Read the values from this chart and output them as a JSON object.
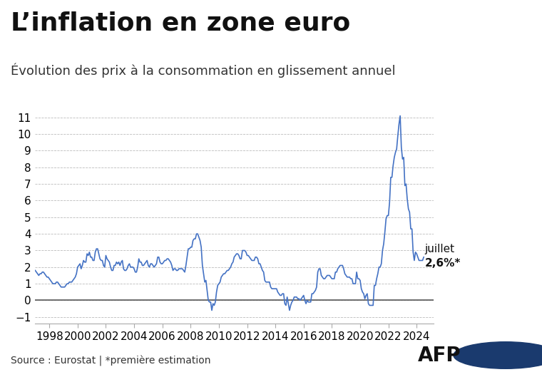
{
  "title": "L’inflation en zone euro",
  "subtitle": "Évolution des prix à la consommation en glissement annuel",
  "source_text": "Source : Eurostat | *première estimation",
  "line_color": "#4472C4",
  "background_color": "#ffffff",
  "ylim": [
    -1.4,
    11.8
  ],
  "yticks": [
    -1,
    0,
    1,
    2,
    3,
    4,
    5,
    6,
    7,
    8,
    9,
    10,
    11
  ],
  "grid_color": "#bbbbbb",
  "zero_line_color": "#555555",
  "title_fontsize": 26,
  "subtitle_fontsize": 13,
  "tick_fontsize": 11,
  "source_fontsize": 10,
  "annotation_fontsize": 11,
  "xlim_left": 1997.0,
  "xlim_right": 2025.2,
  "dates": [
    1997.0,
    1997.083,
    1997.167,
    1997.25,
    1997.333,
    1997.417,
    1997.5,
    1997.583,
    1997.667,
    1997.75,
    1997.833,
    1997.917,
    1998.0,
    1998.083,
    1998.167,
    1998.25,
    1998.333,
    1998.417,
    1998.5,
    1998.583,
    1998.667,
    1998.75,
    1998.833,
    1998.917,
    1999.0,
    1999.083,
    1999.167,
    1999.25,
    1999.333,
    1999.417,
    1999.5,
    1999.583,
    1999.667,
    1999.75,
    1999.833,
    1999.917,
    2000.0,
    2000.083,
    2000.167,
    2000.25,
    2000.333,
    2000.417,
    2000.5,
    2000.583,
    2000.667,
    2000.75,
    2000.833,
    2000.917,
    2001.0,
    2001.083,
    2001.167,
    2001.25,
    2001.333,
    2001.417,
    2001.5,
    2001.583,
    2001.667,
    2001.75,
    2001.833,
    2001.917,
    2002.0,
    2002.083,
    2002.167,
    2002.25,
    2002.333,
    2002.417,
    2002.5,
    2002.583,
    2002.667,
    2002.75,
    2002.833,
    2002.917,
    2003.0,
    2003.083,
    2003.167,
    2003.25,
    2003.333,
    2003.417,
    2003.5,
    2003.583,
    2003.667,
    2003.75,
    2003.833,
    2003.917,
    2004.0,
    2004.083,
    2004.167,
    2004.25,
    2004.333,
    2004.417,
    2004.5,
    2004.583,
    2004.667,
    2004.75,
    2004.833,
    2004.917,
    2005.0,
    2005.083,
    2005.167,
    2005.25,
    2005.333,
    2005.417,
    2005.5,
    2005.583,
    2005.667,
    2005.75,
    2005.833,
    2005.917,
    2006.0,
    2006.083,
    2006.167,
    2006.25,
    2006.333,
    2006.417,
    2006.5,
    2006.583,
    2006.667,
    2006.75,
    2006.833,
    2006.917,
    2007.0,
    2007.083,
    2007.167,
    2007.25,
    2007.333,
    2007.417,
    2007.5,
    2007.583,
    2007.667,
    2007.75,
    2007.833,
    2007.917,
    2008.0,
    2008.083,
    2008.167,
    2008.25,
    2008.333,
    2008.417,
    2008.5,
    2008.583,
    2008.667,
    2008.75,
    2008.833,
    2008.917,
    2009.0,
    2009.083,
    2009.167,
    2009.25,
    2009.333,
    2009.417,
    2009.5,
    2009.583,
    2009.667,
    2009.75,
    2009.833,
    2009.917,
    2010.0,
    2010.083,
    2010.167,
    2010.25,
    2010.333,
    2010.417,
    2010.5,
    2010.583,
    2010.667,
    2010.75,
    2010.833,
    2010.917,
    2011.0,
    2011.083,
    2011.167,
    2011.25,
    2011.333,
    2011.417,
    2011.5,
    2011.583,
    2011.667,
    2011.75,
    2011.833,
    2011.917,
    2012.0,
    2012.083,
    2012.167,
    2012.25,
    2012.333,
    2012.417,
    2012.5,
    2012.583,
    2012.667,
    2012.75,
    2012.833,
    2012.917,
    2013.0,
    2013.083,
    2013.167,
    2013.25,
    2013.333,
    2013.417,
    2013.5,
    2013.583,
    2013.667,
    2013.75,
    2013.833,
    2013.917,
    2014.0,
    2014.083,
    2014.167,
    2014.25,
    2014.333,
    2014.417,
    2014.5,
    2014.583,
    2014.667,
    2014.75,
    2014.833,
    2014.917,
    2015.0,
    2015.083,
    2015.167,
    2015.25,
    2015.333,
    2015.417,
    2015.5,
    2015.583,
    2015.667,
    2015.75,
    2015.833,
    2015.917,
    2016.0,
    2016.083,
    2016.167,
    2016.25,
    2016.333,
    2016.417,
    2016.5,
    2016.583,
    2016.667,
    2016.75,
    2016.833,
    2016.917,
    2017.0,
    2017.083,
    2017.167,
    2017.25,
    2017.333,
    2017.417,
    2017.5,
    2017.583,
    2017.667,
    2017.75,
    2017.833,
    2017.917,
    2018.0,
    2018.083,
    2018.167,
    2018.25,
    2018.333,
    2018.417,
    2018.5,
    2018.583,
    2018.667,
    2018.75,
    2018.833,
    2018.917,
    2019.0,
    2019.083,
    2019.167,
    2019.25,
    2019.333,
    2019.417,
    2019.5,
    2019.583,
    2019.667,
    2019.75,
    2019.833,
    2019.917,
    2020.0,
    2020.083,
    2020.167,
    2020.25,
    2020.333,
    2020.417,
    2020.5,
    2020.583,
    2020.667,
    2020.75,
    2020.833,
    2020.917,
    2021.0,
    2021.083,
    2021.167,
    2021.25,
    2021.333,
    2021.417,
    2021.5,
    2021.583,
    2021.667,
    2021.75,
    2021.833,
    2021.917,
    2022.0,
    2022.083,
    2022.167,
    2022.25,
    2022.333,
    2022.417,
    2022.5,
    2022.583,
    2022.667,
    2022.75,
    2022.833,
    2022.917,
    2023.0,
    2023.083,
    2023.167,
    2023.25,
    2023.333,
    2023.417,
    2023.5,
    2023.583,
    2023.667,
    2023.75,
    2023.833,
    2023.917,
    2024.0,
    2024.083,
    2024.167,
    2024.25,
    2024.417,
    2024.5
  ],
  "values": [
    1.8,
    1.7,
    1.6,
    1.5,
    1.6,
    1.6,
    1.7,
    1.7,
    1.6,
    1.5,
    1.4,
    1.4,
    1.3,
    1.2,
    1.1,
    1.0,
    1.0,
    1.0,
    1.1,
    1.1,
    1.0,
    0.9,
    0.8,
    0.8,
    0.8,
    0.8,
    0.9,
    1.0,
    1.0,
    1.1,
    1.1,
    1.1,
    1.2,
    1.3,
    1.4,
    1.6,
    2.0,
    2.1,
    2.2,
    1.9,
    2.1,
    2.4,
    2.3,
    2.3,
    2.8,
    2.7,
    2.9,
    2.6,
    2.6,
    2.4,
    2.4,
    2.9,
    3.1,
    3.1,
    2.8,
    2.5,
    2.4,
    2.4,
    2.1,
    2.0,
    2.7,
    2.5,
    2.4,
    2.3,
    2.0,
    1.8,
    1.8,
    2.1,
    2.1,
    2.3,
    2.2,
    2.3,
    2.1,
    2.3,
    2.4,
    1.9,
    1.8,
    1.8,
    1.9,
    2.1,
    2.2,
    2.0,
    2.0,
    2.0,
    1.9,
    1.7,
    1.7,
    2.0,
    2.5,
    2.3,
    2.3,
    2.1,
    2.1,
    2.2,
    2.3,
    2.4,
    2.1,
    2.0,
    2.2,
    2.2,
    2.1,
    2.0,
    2.1,
    2.2,
    2.6,
    2.6,
    2.3,
    2.2,
    2.2,
    2.3,
    2.4,
    2.4,
    2.5,
    2.5,
    2.4,
    2.3,
    2.1,
    1.8,
    1.9,
    1.9,
    1.8,
    1.8,
    1.9,
    1.9,
    1.9,
    1.9,
    1.8,
    1.7,
    2.1,
    2.6,
    3.1,
    3.1,
    3.2,
    3.2,
    3.6,
    3.7,
    3.7,
    4.0,
    4.0,
    3.8,
    3.6,
    3.2,
    2.1,
    1.6,
    1.1,
    1.2,
    0.6,
    0.0,
    -0.1,
    -0.1,
    -0.6,
    -0.2,
    -0.3,
    -0.1,
    0.5,
    0.9,
    1.0,
    1.1,
    1.4,
    1.5,
    1.6,
    1.6,
    1.7,
    1.8,
    1.8,
    1.9,
    2.0,
    2.2,
    2.3,
    2.6,
    2.7,
    2.8,
    2.8,
    2.7,
    2.5,
    2.5,
    3.0,
    3.0,
    3.0,
    2.9,
    2.7,
    2.7,
    2.6,
    2.5,
    2.4,
    2.4,
    2.4,
    2.6,
    2.6,
    2.5,
    2.2,
    2.2,
    2.0,
    1.8,
    1.7,
    1.2,
    1.1,
    1.1,
    1.1,
    1.1,
    0.8,
    0.7,
    0.7,
    0.7,
    0.7,
    0.7,
    0.5,
    0.4,
    0.3,
    0.3,
    0.4,
    0.4,
    -0.2,
    -0.3,
    0.2,
    -0.2,
    -0.6,
    -0.3,
    -0.1,
    0.0,
    0.2,
    0.2,
    0.2,
    0.1,
    0.1,
    0.0,
    0.1,
    0.2,
    0.3,
    0.0,
    -0.2,
    0.0,
    -0.1,
    -0.1,
    -0.1,
    0.4,
    0.4,
    0.5,
    0.6,
    0.8,
    1.7,
    1.9,
    1.9,
    1.5,
    1.4,
    1.3,
    1.3,
    1.4,
    1.5,
    1.5,
    1.5,
    1.4,
    1.3,
    1.3,
    1.3,
    1.7,
    1.7,
    1.9,
    2.0,
    2.1,
    2.1,
    2.1,
    1.9,
    1.6,
    1.5,
    1.4,
    1.4,
    1.4,
    1.3,
    1.3,
    1.0,
    1.0,
    1.0,
    1.7,
    1.3,
    1.3,
    1.2,
    0.7,
    0.5,
    0.4,
    0.1,
    0.3,
    0.4,
    -0.2,
    -0.3,
    -0.3,
    -0.3,
    -0.3,
    0.9,
    0.9,
    1.3,
    1.6,
    2.0,
    2.0,
    2.2,
    3.0,
    3.4,
    4.1,
    4.9,
    5.1,
    5.1,
    5.9,
    7.4,
    7.4,
    8.1,
    8.6,
    8.9,
    9.1,
    9.9,
    10.6,
    11.1,
    9.2,
    8.5,
    8.6,
    6.9,
    7.0,
    6.1,
    5.5,
    5.3,
    4.3,
    4.3,
    2.9,
    2.4,
    2.9,
    2.8,
    2.6,
    2.4,
    2.4,
    2.4,
    2.6
  ],
  "xtick_positions": [
    1998,
    2000,
    2002,
    2004,
    2006,
    2008,
    2010,
    2012,
    2014,
    2016,
    2018,
    2020,
    2022,
    2024
  ],
  "xtick_labels": [
    "1998",
    "2000",
    "2002",
    "2004",
    "2006",
    "2008",
    "2010",
    "2012",
    "2014",
    "2016",
    "2018",
    "2020",
    "2022",
    "2024"
  ],
  "last_point_x": 2024.5,
  "last_point_y": 2.6
}
